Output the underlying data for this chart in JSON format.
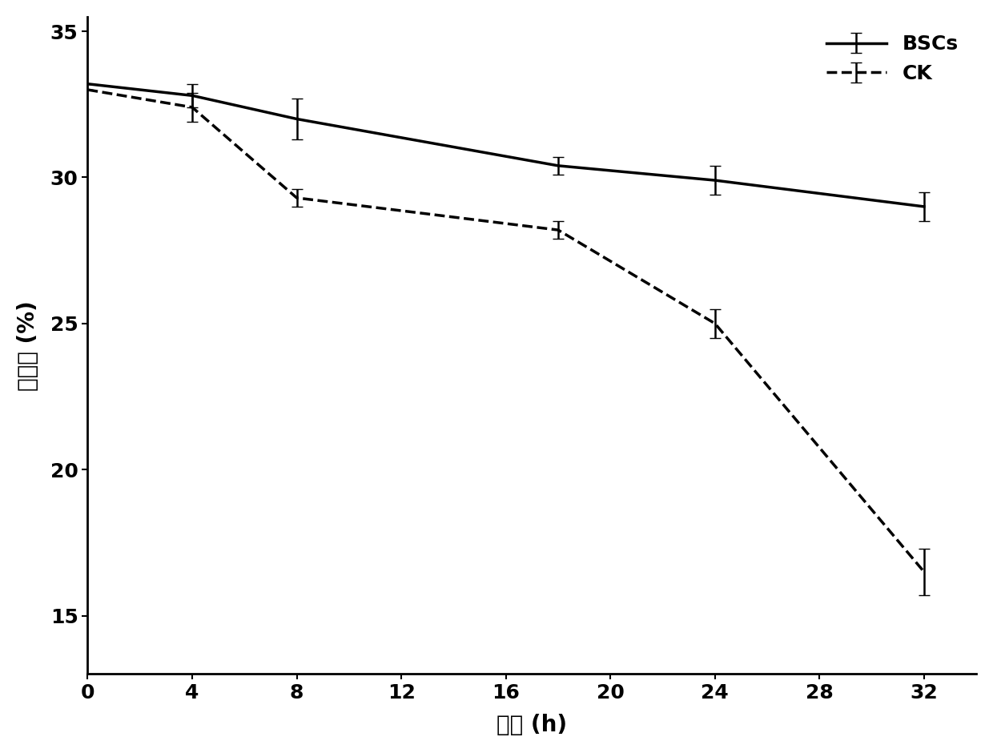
{
  "bsc_x": [
    0,
    4,
    8,
    18,
    24,
    32
  ],
  "bsc_y": [
    33.2,
    32.8,
    32.0,
    30.4,
    29.9,
    29.0
  ],
  "bsc_yerr": [
    0.0,
    0.4,
    0.7,
    0.3,
    0.5,
    0.5
  ],
  "ck_x": [
    0,
    4,
    8,
    18,
    24,
    32
  ],
  "ck_y": [
    33.0,
    32.4,
    29.3,
    28.2,
    25.0,
    16.5
  ],
  "ck_yerr": [
    0.0,
    0.5,
    0.3,
    0.3,
    0.5,
    0.8
  ],
  "xlabel": "历时 (h)",
  "ylabel": "含水率 (%)",
  "bsc_label": "BSCs",
  "ck_label": "CK",
  "xlim": [
    0,
    34
  ],
  "ylim": [
    13,
    35.5
  ],
  "xticks": [
    0,
    4,
    8,
    12,
    16,
    20,
    24,
    28,
    32
  ],
  "yticks": [
    15,
    20,
    25,
    30,
    35
  ],
  "line_color": "#000000",
  "bg_color": "#ffffff",
  "title_fontsize": 18,
  "label_fontsize": 20,
  "tick_fontsize": 18,
  "legend_fontsize": 18,
  "linewidth": 2.5,
  "capsize": 5,
  "elinewidth": 1.8
}
